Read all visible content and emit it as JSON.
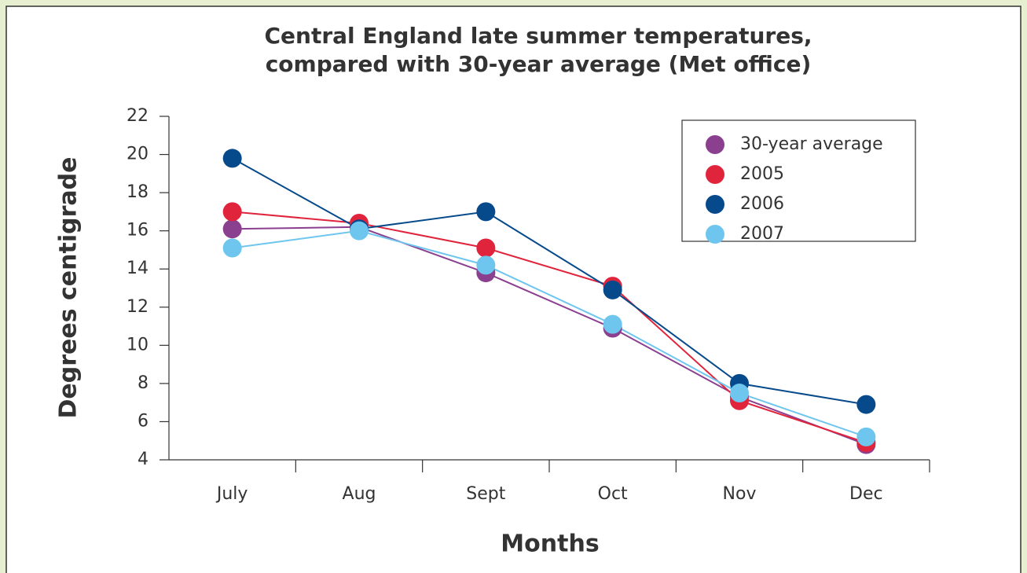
{
  "chart_data": {
    "type": "line",
    "title": [
      "Central England late summer temperatures,",
      "compared with 30-year average (Met office)"
    ],
    "xlabel": "Months",
    "ylabel": "Degrees centigrade",
    "categories": [
      "July",
      "Aug",
      "Sept",
      "Oct",
      "Nov",
      "Dec"
    ],
    "series": [
      {
        "name": "30-year average",
        "color": "#8b3f8f",
        "values": [
          16.1,
          16.2,
          13.8,
          10.9,
          7.3,
          4.8
        ]
      },
      {
        "name": "2005",
        "color": "#e0243c",
        "values": [
          17.0,
          16.4,
          15.1,
          13.1,
          7.1,
          4.9
        ]
      },
      {
        "name": "2006",
        "color": "#064a8c",
        "values": [
          19.8,
          16.1,
          17.0,
          12.9,
          8.0,
          6.9
        ]
      },
      {
        "name": "2007",
        "color": "#6ec6ee",
        "values": [
          15.1,
          16.0,
          14.2,
          11.1,
          7.5,
          5.2
        ]
      }
    ],
    "ylim": [
      4,
      22
    ],
    "yticks": [
      4,
      6,
      8,
      10,
      12,
      14,
      16,
      18,
      20,
      22
    ],
    "grid": false,
    "legend": "top-right"
  }
}
